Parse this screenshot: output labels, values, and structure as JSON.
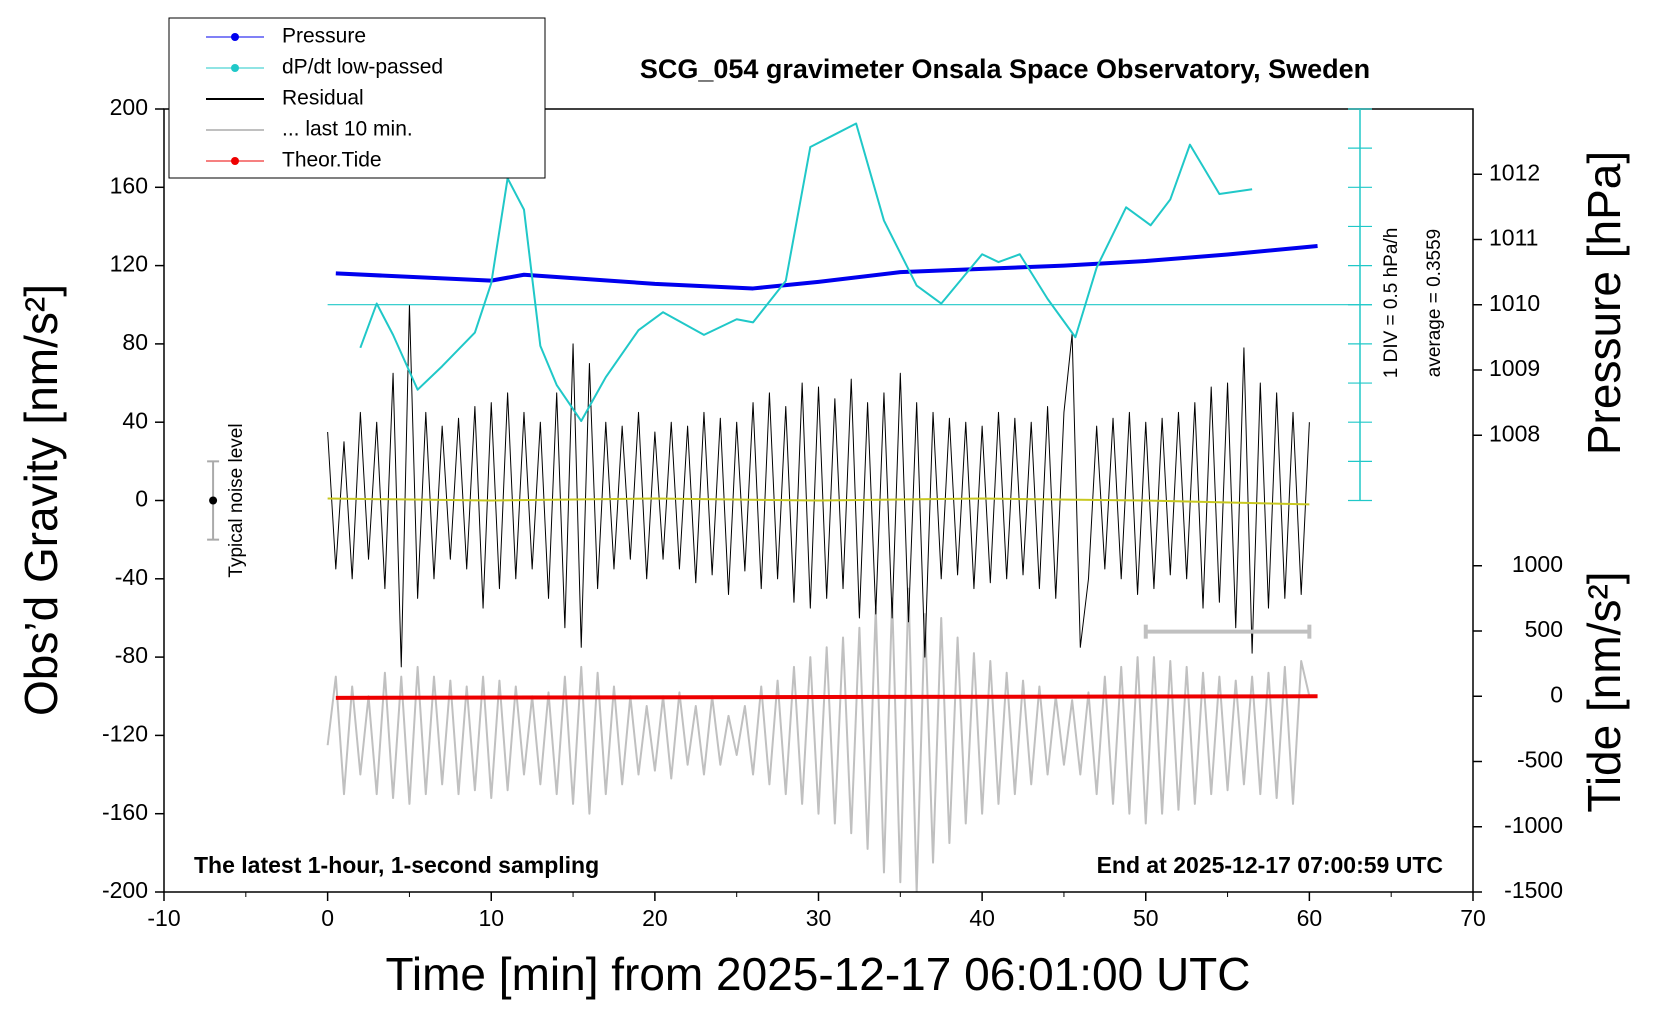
{
  "chart_data": {
    "type": "line",
    "title": "SCG_054 gravimeter Onsala Space Observatory, Sweden",
    "xlabel": "Time [min] from 2025-12-17 06:01:00 UTC",
    "ylabel": "Obs’d Gravity [nm/s²]",
    "y2label": "Pressure [hPa]",
    "y3label": "Tide [nm/s²]",
    "annotations": [
      "The latest 1-hour, 1-second sampling",
      "End at 2025-12-17 07:00:59 UTC"
    ],
    "dpdt_scale_label": "1 DIV = 0.5 hPa/h",
    "average_label": "average = 0.3559",
    "average": 0.3559,
    "noise": {
      "label": "Typical noise level",
      "x": -7,
      "value": 0,
      "error": 20
    },
    "last10_marker": {
      "x": [
        50,
        60
      ],
      "y": -67,
      "color": "#c0c0c0"
    },
    "xlim": [
      -10,
      70
    ],
    "xticks": [
      -10,
      0,
      10,
      20,
      30,
      40,
      50,
      60,
      70
    ],
    "ylim": [
      -200,
      200
    ],
    "yticks": [
      -200,
      -160,
      -120,
      -80,
      -40,
      0,
      40,
      80,
      120,
      160,
      200
    ],
    "y2lim": [
      1001,
      1013
    ],
    "y2ticks": [
      1008,
      1009,
      1010,
      1011,
      1012
    ],
    "y3lim": [
      -1500,
      4500
    ],
    "y3ticks": [
      -1500,
      -1000,
      -500,
      0,
      500,
      1000
    ],
    "y4lim": [
      -7.145,
      2.855
    ],
    "y4ticks": [
      -2.145,
      -1.645,
      -1.145,
      -0.645,
      -0.145,
      0.355,
      0.855,
      1.355,
      1.855,
      2.355,
      2.855
    ],
    "legend": "upper left",
    "x": [
      0,
      0.5,
      1,
      1.5,
      2,
      2.5,
      3,
      3.5,
      4,
      4.5,
      5,
      5.5,
      6,
      6.5,
      7,
      7.5,
      8,
      8.5,
      9,
      9.5,
      10,
      10.5,
      11,
      11.5,
      12,
      12.5,
      13,
      13.5,
      14,
      14.5,
      15,
      15.5,
      16,
      16.5,
      17,
      17.5,
      18,
      18.5,
      19,
      19.5,
      20,
      20.5,
      21,
      21.5,
      22,
      22.5,
      23,
      23.5,
      24,
      24.5,
      25,
      25.5,
      26,
      26.5,
      27,
      27.5,
      28,
      28.5,
      29,
      29.5,
      30,
      30.5,
      31,
      31.5,
      32,
      32.5,
      33,
      33.5,
      34,
      34.5,
      35,
      35.5,
      36,
      36.5,
      37,
      37.5,
      38,
      38.5,
      39,
      39.5,
      40,
      40.5,
      41,
      41.5,
      42,
      42.5,
      43,
      43.5,
      44,
      44.5,
      45,
      45.5,
      46,
      46.5,
      47,
      47.5,
      48,
      48.5,
      49,
      49.5,
      50,
      50.5,
      51,
      51.5,
      52,
      52.5,
      53,
      53.5,
      54,
      54.5,
      55,
      55.5,
      56,
      56.5,
      57,
      57.5,
      58,
      58.5,
      59,
      59.5,
      60
    ],
    "series": [
      {
        "name": "Pressure",
        "color": "#0000ee",
        "axis": "y2",
        "marker": true,
        "width": 4,
        "x": [
          0.5,
          10,
          12,
          20,
          26,
          30,
          35,
          40,
          45,
          50,
          55,
          60.5
        ],
        "values": [
          1010.48,
          1010.37,
          1010.46,
          1010.32,
          1010.25,
          1010.35,
          1010.5,
          1010.55,
          1010.6,
          1010.67,
          1010.77,
          1010.9
        ]
      },
      {
        "name": "dP/dt low-passed",
        "color": "#20c8c8",
        "axis": "y4",
        "marker": true,
        "width": 2,
        "x": [
          2,
          3,
          4,
          5.5,
          7,
          9,
          10,
          11,
          12,
          13,
          14,
          15.5,
          17,
          19,
          20.5,
          23,
          25,
          26,
          28,
          29.5,
          31,
          32.3,
          34,
          36,
          37.5,
          40,
          41,
          42.3,
          44,
          45.7,
          47,
          48.8,
          50.3,
          51.5,
          52.7,
          54.5,
          56.5
        ],
        "values": [
          -0.195,
          0.37,
          -0.03,
          -0.73,
          -0.43,
          0,
          0.63,
          1.97,
          1.57,
          -0.17,
          -0.67,
          -1.13,
          -0.57,
          0.03,
          0.26,
          -0.03,
          0.17,
          0.13,
          0.66,
          2.37,
          2.53,
          2.67,
          1.43,
          0.6,
          0.37,
          1.0,
          0.9,
          1.0,
          0.43,
          -0.06,
          0.83,
          1.6,
          1.37,
          1.7,
          2.4,
          1.77,
          1.83
        ]
      },
      {
        "name": "Residual",
        "color": "#000000",
        "width": 1,
        "values": [
          35,
          -35,
          30,
          -40,
          45,
          -30,
          40,
          -45,
          65,
          -85,
          100,
          -50,
          45,
          -40,
          38,
          -30,
          42,
          -35,
          48,
          -55,
          50,
          -45,
          55,
          -40,
          45,
          -35,
          40,
          -50,
          55,
          -65,
          80,
          -75,
          70,
          -45,
          40,
          -35,
          38,
          -30,
          45,
          -40,
          35,
          -30,
          40,
          -35,
          38,
          -42,
          45,
          -38,
          42,
          -48,
          40,
          -36,
          50,
          -45,
          55,
          -40,
          48,
          -52,
          60,
          -55,
          58,
          -50,
          52,
          -45,
          62,
          -60,
          50,
          -58,
          55,
          -60,
          65,
          -62,
          50,
          -80,
          45,
          -40,
          42,
          -38,
          40,
          -45,
          38,
          -42,
          45,
          -40,
          42,
          -38,
          40,
          -45,
          48,
          -50,
          45,
          85,
          -75,
          -40,
          38,
          -35,
          42,
          -40,
          45,
          -48,
          40,
          -45,
          42,
          -38,
          45,
          -40,
          50,
          -55,
          58,
          -52,
          60,
          -65,
          78,
          -78,
          60,
          -55,
          55,
          -50,
          45,
          -48,
          40
        ]
      },
      {
        "name": "... last 10 min.",
        "color": "#c0c0c0",
        "width": 2,
        "values": [
          -125,
          -90,
          -150,
          -95,
          -140,
          -100,
          -150,
          -88,
          -152,
          -90,
          -155,
          -85,
          -150,
          -90,
          -145,
          -92,
          -150,
          -95,
          -148,
          -90,
          -152,
          -92,
          -148,
          -95,
          -140,
          -100,
          -145,
          -98,
          -150,
          -90,
          -155,
          -85,
          -160,
          -88,
          -150,
          -95,
          -145,
          -100,
          -140,
          -105,
          -138,
          -100,
          -142,
          -98,
          -135,
          -105,
          -140,
          -100,
          -135,
          -110,
          -130,
          -105,
          -140,
          -95,
          -145,
          -92,
          -150,
          -85,
          -155,
          -80,
          -160,
          -75,
          -165,
          -70,
          -170,
          -65,
          -178,
          -55,
          -190,
          -50,
          -195,
          -45,
          -200,
          -58,
          -185,
          -60,
          -175,
          -70,
          -165,
          -78,
          -160,
          -82,
          -155,
          -88,
          -150,
          -92,
          -145,
          -95,
          -140,
          -100,
          -135,
          -102,
          -140,
          -98,
          -150,
          -90,
          -155,
          -85,
          -160,
          -80,
          -165,
          -80,
          -160,
          -82,
          -158,
          -85,
          -155,
          -88,
          -150,
          -90,
          -148,
          -92,
          -145,
          -90,
          -150,
          -88,
          -152,
          -85,
          -155,
          -82,
          -100
        ]
      },
      {
        "name": "Theor.Tide",
        "color": "#ee0000",
        "axis": "y3",
        "marker": true,
        "width": 4,
        "x": [
          0.5,
          60.5
        ],
        "values": [
          -12,
          0
        ]
      },
      {
        "color": "#c8c820",
        "width": 2,
        "x": [
          0,
          10,
          20,
          30,
          40,
          50,
          60
        ],
        "values": [
          1,
          0,
          1,
          0,
          1,
          0,
          -2
        ]
      }
    ]
  }
}
